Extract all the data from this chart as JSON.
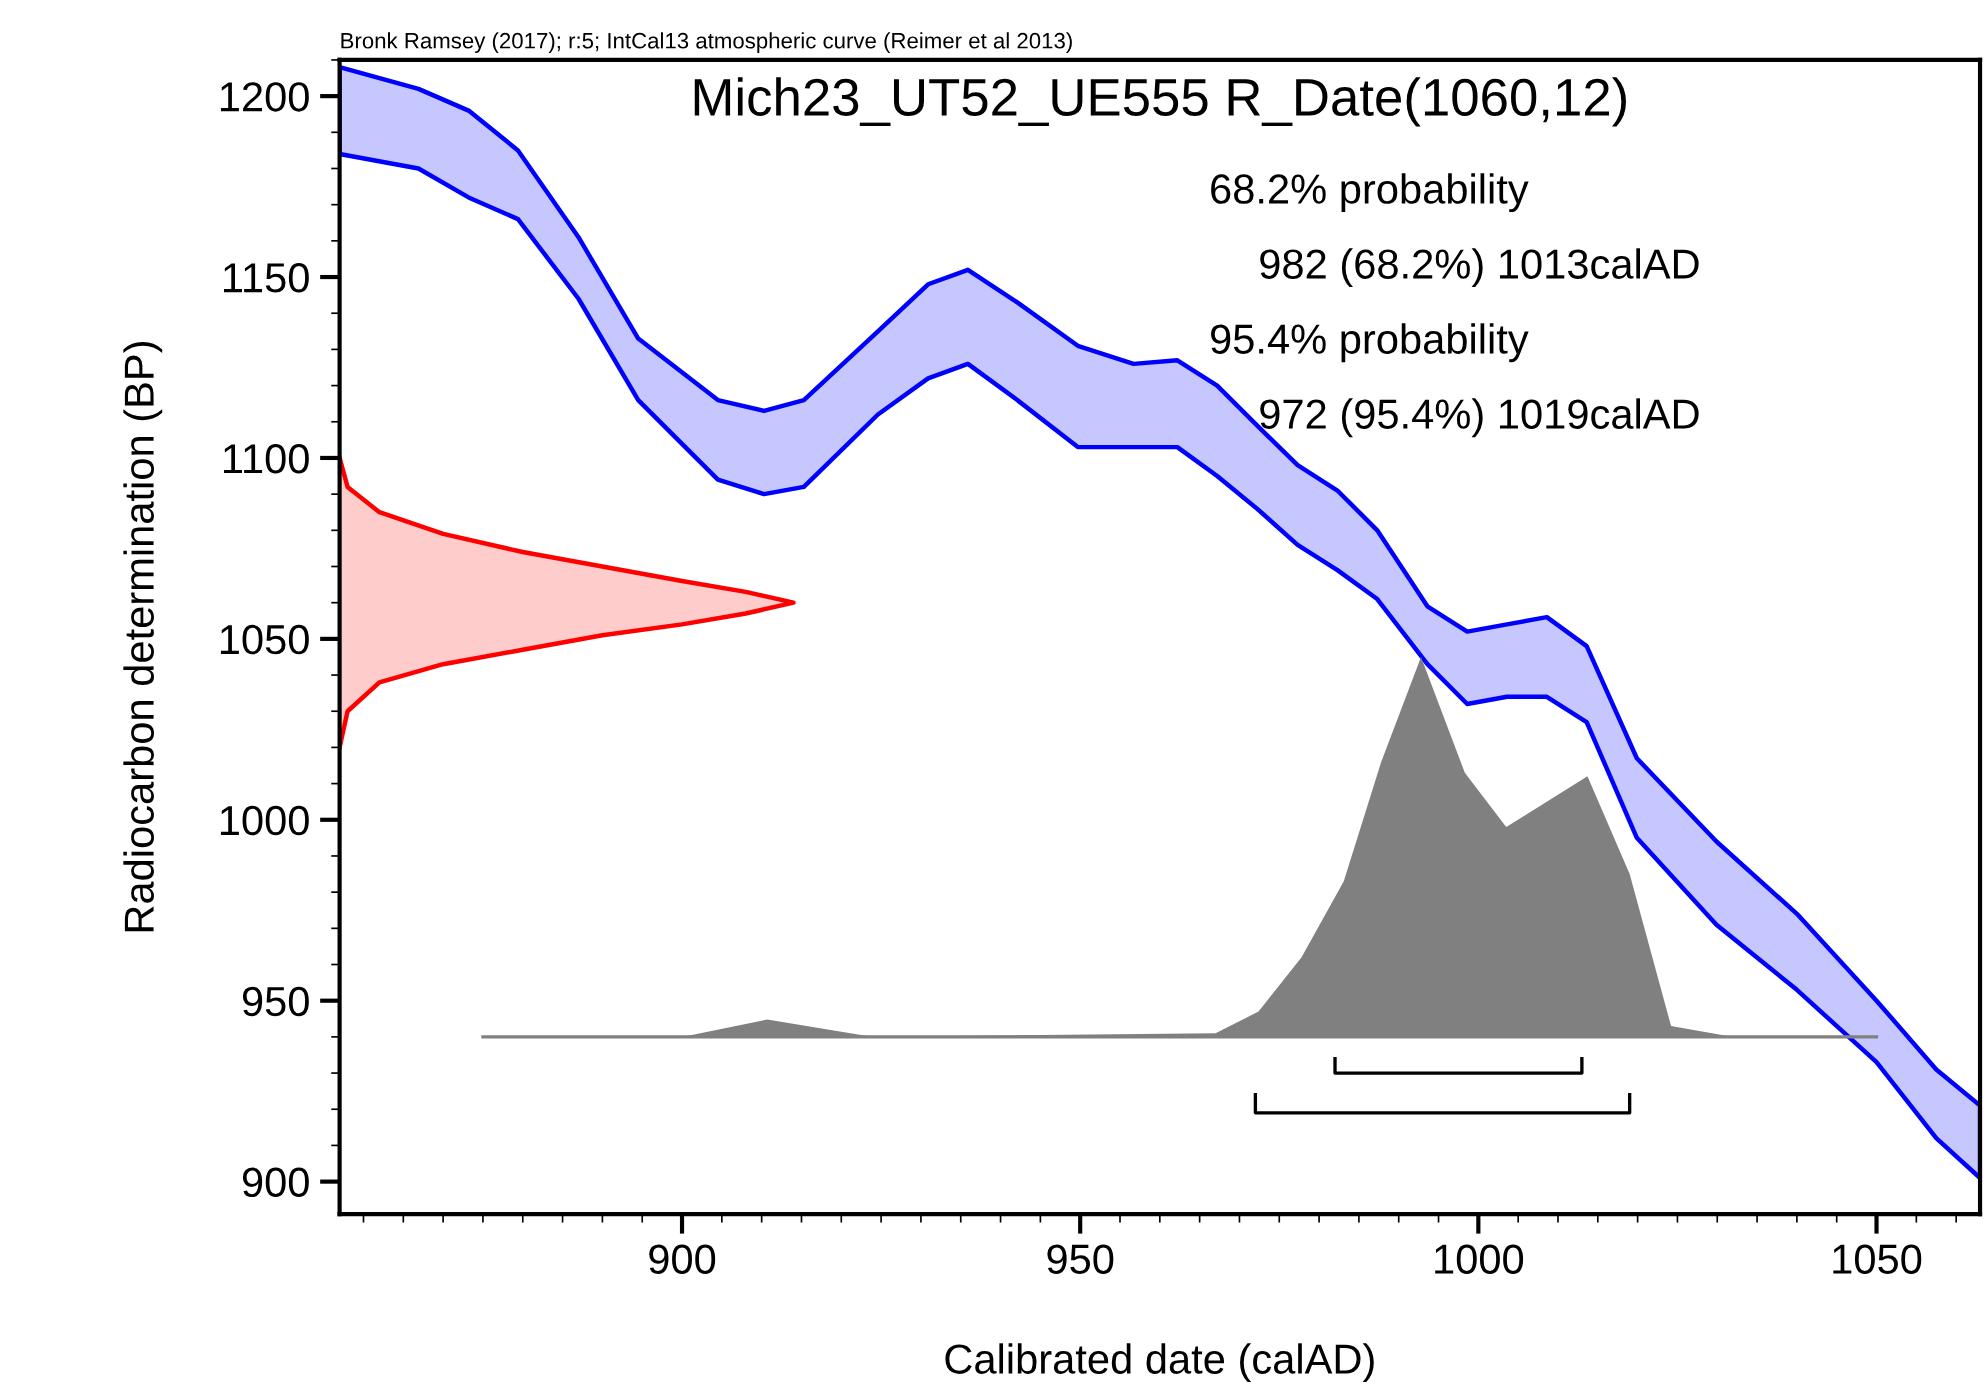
{
  "chart_data": {
    "type": "line",
    "title": "Mich23_UT52_UE555 R_Date(1060,12)",
    "xlabel": "Calibrated date (calAD)",
    "ylabel": "Radiocarbon determination (BP)",
    "annotations": [
      "Bronk Ramsey (2017); r:5; IntCal13 atmospheric curve (Reimer et al 2013)",
      "68.2% probability",
      "982 (68.2%) 1013calAD",
      "95.4% probability",
      "972 (95.4%) 1019calAD"
    ],
    "xlim": [
      857,
      1063
    ],
    "xticks": [
      900,
      950,
      1000,
      1050
    ],
    "ylim": [
      891,
      1210
    ],
    "yticks": [
      900,
      950,
      1000,
      1050,
      1100,
      1150,
      1200
    ],
    "grid": false,
    "legend": false,
    "series": [
      {
        "color": "#0000ff",
        "x": [
          857,
          866.9,
          873.2,
          879.4,
          887,
          894.5,
          904.5,
          910.3,
          915.3,
          924.6,
          930.9,
          935.9,
          942.1,
          949.7,
          956.7,
          962.2,
          967.2,
          972.2,
          977.3,
          982.3,
          987.3,
          993.6,
          998.6,
          1003.6,
          1008.6,
          1013.6,
          1019.9,
          1029.9,
          1040,
          1050,
          1057.5,
          1063
        ],
        "values": [
          null,
          null,
          null,
          null,
          null,
          null,
          null,
          null,
          null,
          null,
          null,
          null,
          null,
          null,
          null,
          null,
          null,
          null,
          null,
          null,
          null,
          null,
          null,
          null,
          null,
          null,
          null,
          null,
          null,
          null,
          null,
          null
        ],
        "upper": [
          1208,
          1202,
          1196,
          1185,
          1161,
          1133,
          1116,
          1113,
          1116,
          1135,
          1148,
          1152,
          1143,
          1131,
          1126,
          1127,
          1120,
          1109,
          1098,
          1091,
          1080,
          1059,
          1052,
          1054,
          1056,
          1048,
          1017,
          994,
          974,
          950,
          931,
          921
        ],
        "lower": [
          1184,
          1180,
          1172,
          1166,
          1144,
          1116,
          1094,
          1090,
          1092,
          1112,
          1122,
          1126,
          1116,
          1103,
          1103,
          1103,
          1095,
          1086,
          1076,
          1069,
          1061,
          1043,
          1032,
          1034,
          1034,
          1027,
          995,
          971,
          953,
          933,
          912,
          901
        ]
      },
      {
        "type": "area",
        "color": "#ff0000",
        "x": [
          857,
          858,
          862,
          870,
          880,
          890,
          900,
          908,
          914,
          908,
          900,
          890,
          880,
          870,
          862,
          858,
          857
        ],
        "values": [
          1100,
          1092,
          1085,
          1079,
          1074,
          1070,
          1066,
          1063,
          1060,
          1057,
          1054,
          1051,
          1047,
          1043,
          1038,
          1030,
          1020
        ]
      },
      {
        "type": "area",
        "color": "#808080",
        "x": [
          900,
          910.7,
          924,
          967,
          972.4,
          977.8,
          983.1,
          987.8,
          992.8,
          998.3,
          1003.5,
          1013.7,
          1019,
          1024.2,
          1032
        ],
        "values": [
          940,
          944.8,
          940,
          941,
          947,
          962,
          983,
          1016,
          1045,
          1013,
          998,
          1012,
          985,
          943,
          940
        ]
      },
      {
        "color": "#808080",
        "x": [
          875,
          1050
        ],
        "values": [
          940,
          940
        ]
      },
      {
        "color": "#000000",
        "x": [
          982,
          982,
          1013,
          1013
        ],
        "values": [
          934,
          930,
          930,
          934
        ]
      },
      {
        "color": "#000000",
        "x": [
          972,
          972,
          1019,
          1019
        ],
        "values": [
          924,
          919,
          919,
          924
        ]
      }
    ]
  }
}
